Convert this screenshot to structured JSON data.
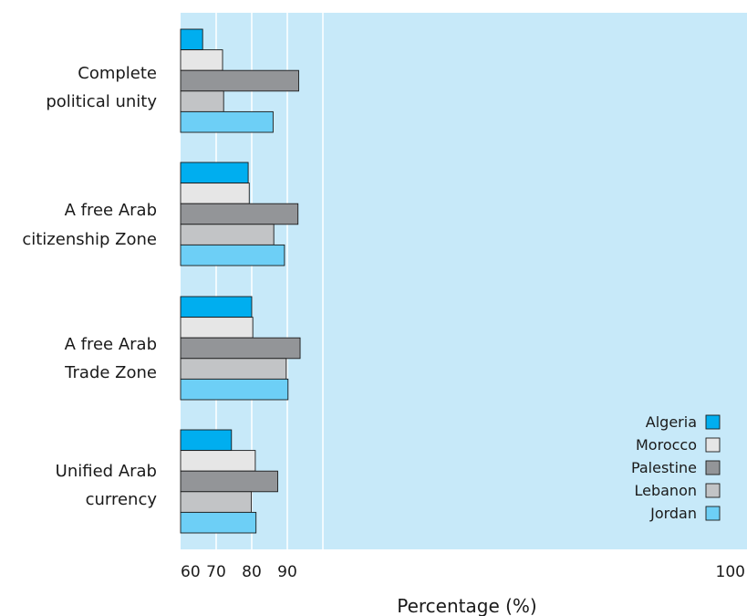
{
  "chart_data": {
    "type": "bar",
    "orientation": "horizontal",
    "categories": [
      [
        "Complete",
        "political unity"
      ],
      [
        "A free Arab",
        "citizenship Zone"
      ],
      [
        "A free Arab",
        "Trade Zone"
      ],
      [
        "Unified Arab",
        "currency"
      ]
    ],
    "series": [
      {
        "name": "Algeria",
        "color": "#00aeef",
        "values": [
          66.2,
          79.0,
          80.0,
          74.3
        ]
      },
      {
        "name": "Morocco",
        "color": "#e6e6e6",
        "values": [
          71.8,
          79.3,
          80.3,
          81.0
        ]
      },
      {
        "name": "Palestine",
        "color": "#939598",
        "values": [
          93.2,
          93.0,
          93.6,
          87.3
        ]
      },
      {
        "name": "Lebanon",
        "color": "#c2c4c6",
        "values": [
          72.1,
          86.2,
          89.7,
          79.9
        ]
      },
      {
        "name": "Jordan",
        "color": "#6dcff6",
        "values": [
          86.0,
          89.2,
          90.2,
          81.2
        ]
      }
    ],
    "xlabel": "Percentage (%)",
    "xlim": [
      60,
      100
    ],
    "xticks": [
      60,
      70,
      80,
      90,
      100
    ],
    "grid": true,
    "plot_background": "#c7e9f9",
    "legend": "bottom-right"
  }
}
